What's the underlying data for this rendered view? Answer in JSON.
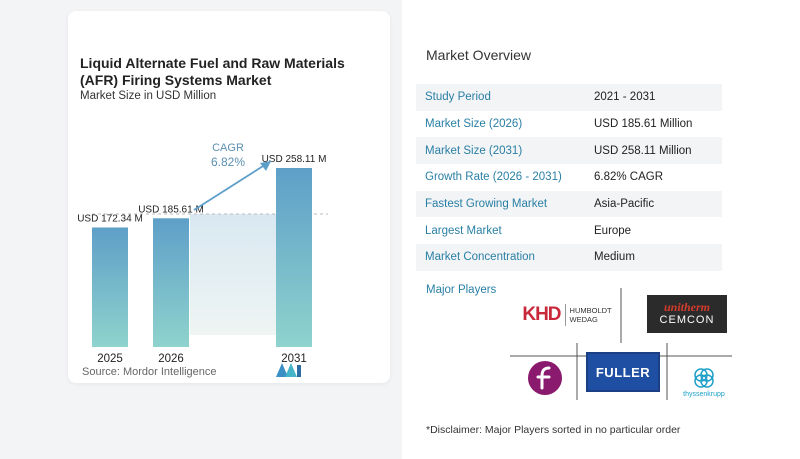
{
  "chart": {
    "title": "Liquid Alternate Fuel and Raw Materials (AFR) Firing Systems Market",
    "subtitle": "Market Size in USD Million",
    "cagr_label": "CAGR",
    "cagr_value": "6.82%",
    "source": "Source:  Mordor Intelligence"
  },
  "chart_data": {
    "type": "bar",
    "categories": [
      "2025",
      "2026",
      "2031"
    ],
    "values": [
      172.34,
      185.61,
      258.11
    ],
    "data_labels": [
      "USD 172.34 M",
      "USD 185.61 M",
      "USD 258.11 M"
    ],
    "title": "Liquid Alternate Fuel and Raw Materials (AFR) Firing Systems Market",
    "subtitle": "Market Size in USD Million",
    "annotation": "CAGR 6.82%",
    "grid": false,
    "colors": {
      "bar_top": "#5e9fc8",
      "bar_bottom": "#8fd3cd",
      "arrow": "#5d9fc9",
      "dash": "#bbbbbb"
    }
  },
  "overview": {
    "title": "Market Overview",
    "rows": [
      {
        "label": "Study Period",
        "value": "2021 - 2031"
      },
      {
        "label": "Market Size (2026)",
        "value": "USD 185.61 Million"
      },
      {
        "label": "Market Size (2031)",
        "value": "USD 258.11 Million"
      },
      {
        "label": "Growth Rate (2026 - 2031)",
        "value": "6.82% CAGR"
      },
      {
        "label": "Fastest Growing Market",
        "value": "Asia-Pacific"
      },
      {
        "label": "Largest Market",
        "value": "Europe"
      },
      {
        "label": "Market Concentration",
        "value": "Medium"
      }
    ]
  },
  "players": {
    "title": "Major Players",
    "khd_mark": "KHD",
    "khd_line1": "HUMBOLDT",
    "khd_line2": "WEDAG",
    "unitherm_line1": "unitherm",
    "unitherm_line2": "CEMCON",
    "fuller": "FULLER",
    "thyssenkrupp": "thyssenkrupp",
    "disclaimer": "*Disclaimer: Major Players sorted in no particular order"
  },
  "colors": {
    "accent": "#2a7fa5",
    "row_shade": "#f2f4f6"
  }
}
